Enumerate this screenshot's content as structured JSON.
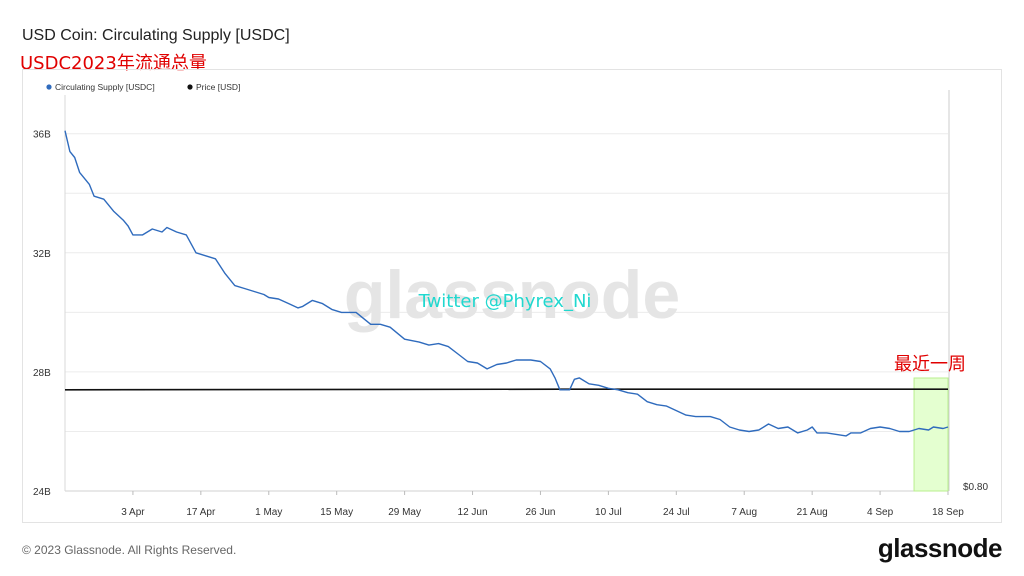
{
  "header": {
    "title": "USD Coin: Circulating Supply [USDC]",
    "subtitle": "USDC2023年流通总量"
  },
  "footer": {
    "copyright": "© 2023 Glassnode. All Rights Reserved.",
    "logo": "glassnode"
  },
  "chart_data": {
    "type": "line",
    "legend_placement": "top-left",
    "grid": true,
    "x_tick_labels": [
      "3 Apr",
      "17 Apr",
      "1 May",
      "15 May",
      "29 May",
      "12 Jun",
      "26 Jun",
      "10 Jul",
      "24 Jul",
      "7 Aug",
      "21 Aug",
      "4 Sep",
      "18 Sep"
    ],
    "y_tick_labels": [
      "36B",
      "32B",
      "28B",
      "24B"
    ],
    "y_ticks": [
      36,
      32,
      28,
      24
    ],
    "ylim": [
      24,
      37.3
    ],
    "xlim": [
      "2023-03-20",
      "2023-09-18"
    ],
    "right_axis_label": "$0.80",
    "watermark": "glassnode",
    "annotations": {
      "twitter": "Twitter @Phyrex_Ni",
      "last_week": "最近一周",
      "highlight_range": [
        "2023-09-11",
        "2023-09-18"
      ]
    },
    "series": [
      {
        "name": "Circulating Supply [USDC]",
        "color": "#2f6bbd",
        "points": [
          [
            "2023-03-20",
            36.1
          ],
          [
            "2023-03-21",
            35.4
          ],
          [
            "2023-03-22",
            35.2
          ],
          [
            "2023-03-23",
            34.7
          ],
          [
            "2023-03-25",
            34.3
          ],
          [
            "2023-03-26",
            33.9
          ],
          [
            "2023-03-28",
            33.8
          ],
          [
            "2023-03-30",
            33.4
          ],
          [
            "2023-04-01",
            33.1
          ],
          [
            "2023-04-02",
            32.9
          ],
          [
            "2023-04-03",
            32.6
          ],
          [
            "2023-04-05",
            32.6
          ],
          [
            "2023-04-07",
            32.8
          ],
          [
            "2023-04-09",
            32.7
          ],
          [
            "2023-04-10",
            32.85
          ],
          [
            "2023-04-12",
            32.7
          ],
          [
            "2023-04-14",
            32.6
          ],
          [
            "2023-04-16",
            32.0
          ],
          [
            "2023-04-18",
            31.9
          ],
          [
            "2023-04-20",
            31.8
          ],
          [
            "2023-04-22",
            31.3
          ],
          [
            "2023-04-24",
            30.9
          ],
          [
            "2023-04-26",
            30.8
          ],
          [
            "2023-04-28",
            30.7
          ],
          [
            "2023-04-30",
            30.6
          ],
          [
            "2023-05-01",
            30.5
          ],
          [
            "2023-05-03",
            30.45
          ],
          [
            "2023-05-05",
            30.3
          ],
          [
            "2023-05-07",
            30.15
          ],
          [
            "2023-05-08",
            30.2
          ],
          [
            "2023-05-10",
            30.4
          ],
          [
            "2023-05-12",
            30.3
          ],
          [
            "2023-05-14",
            30.1
          ],
          [
            "2023-05-16",
            30.0
          ],
          [
            "2023-05-19",
            30.0
          ],
          [
            "2023-05-22",
            29.6
          ],
          [
            "2023-05-24",
            29.6
          ],
          [
            "2023-05-26",
            29.5
          ],
          [
            "2023-05-29",
            29.1
          ],
          [
            "2023-06-01",
            29.0
          ],
          [
            "2023-06-03",
            28.9
          ],
          [
            "2023-06-05",
            28.95
          ],
          [
            "2023-06-07",
            28.85
          ],
          [
            "2023-06-09",
            28.6
          ],
          [
            "2023-06-11",
            28.35
          ],
          [
            "2023-06-13",
            28.3
          ],
          [
            "2023-06-15",
            28.1
          ],
          [
            "2023-06-17",
            28.25
          ],
          [
            "2023-06-19",
            28.3
          ],
          [
            "2023-06-21",
            28.4
          ],
          [
            "2023-06-24",
            28.4
          ],
          [
            "2023-06-26",
            28.35
          ],
          [
            "2023-06-28",
            28.1
          ],
          [
            "2023-06-29",
            27.8
          ],
          [
            "2023-06-30",
            27.4
          ],
          [
            "2023-07-02",
            27.4
          ],
          [
            "2023-07-03",
            27.75
          ],
          [
            "2023-07-04",
            27.8
          ],
          [
            "2023-07-06",
            27.6
          ],
          [
            "2023-07-08",
            27.55
          ],
          [
            "2023-07-10",
            27.45
          ],
          [
            "2023-07-12",
            27.4
          ],
          [
            "2023-07-14",
            27.3
          ],
          [
            "2023-07-16",
            27.25
          ],
          [
            "2023-07-18",
            27.0
          ],
          [
            "2023-07-20",
            26.9
          ],
          [
            "2023-07-22",
            26.85
          ],
          [
            "2023-07-24",
            26.7
          ],
          [
            "2023-07-26",
            26.55
          ],
          [
            "2023-07-28",
            26.5
          ],
          [
            "2023-07-31",
            26.5
          ],
          [
            "2023-08-02",
            26.4
          ],
          [
            "2023-08-04",
            26.15
          ],
          [
            "2023-08-06",
            26.05
          ],
          [
            "2023-08-08",
            26.0
          ],
          [
            "2023-08-10",
            26.05
          ],
          [
            "2023-08-12",
            26.25
          ],
          [
            "2023-08-14",
            26.1
          ],
          [
            "2023-08-16",
            26.15
          ],
          [
            "2023-08-18",
            25.95
          ],
          [
            "2023-08-20",
            26.05
          ],
          [
            "2023-08-21",
            26.15
          ],
          [
            "2023-08-22",
            25.95
          ],
          [
            "2023-08-24",
            25.95
          ],
          [
            "2023-08-26",
            25.9
          ],
          [
            "2023-08-28",
            25.85
          ],
          [
            "2023-08-29",
            25.95
          ],
          [
            "2023-08-31",
            25.95
          ],
          [
            "2023-09-02",
            26.1
          ],
          [
            "2023-09-04",
            26.15
          ],
          [
            "2023-09-06",
            26.1
          ],
          [
            "2023-09-08",
            26.0
          ],
          [
            "2023-09-10",
            26.0
          ],
          [
            "2023-09-12",
            26.1
          ],
          [
            "2023-09-14",
            26.05
          ],
          [
            "2023-09-15",
            26.15
          ],
          [
            "2023-09-17",
            26.1
          ],
          [
            "2023-09-18",
            26.15
          ]
        ]
      },
      {
        "name": "Price [USD]",
        "color": "#111111",
        "points": [
          [
            "2023-03-20",
            27.4
          ],
          [
            "2023-06-30",
            27.42
          ],
          [
            "2023-09-18",
            27.42
          ]
        ]
      }
    ]
  }
}
